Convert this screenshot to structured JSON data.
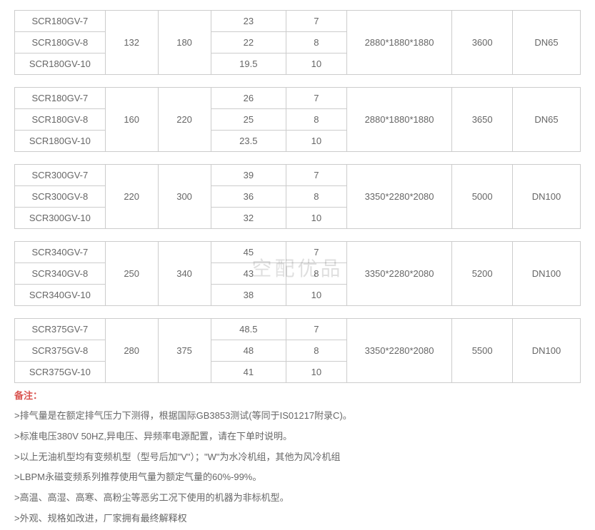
{
  "watermark": "空配优品",
  "groups": [
    {
      "power": "132",
      "hp": "180",
      "dim": "2880*1880*1880",
      "weight": "3600",
      "conn": "DN65",
      "rows": [
        {
          "model": "SCR180GV-7",
          "flow": "23",
          "press": "7"
        },
        {
          "model": "SCR180GV-8",
          "flow": "22",
          "press": "8"
        },
        {
          "model": "SCR180GV-10",
          "flow": "19.5",
          "press": "10"
        }
      ]
    },
    {
      "power": "160",
      "hp": "220",
      "dim": "2880*1880*1880",
      "weight": "3650",
      "conn": "DN65",
      "rows": [
        {
          "model": "SCR180GV-7",
          "flow": "26",
          "press": "7"
        },
        {
          "model": "SCR180GV-8",
          "flow": "25",
          "press": "8"
        },
        {
          "model": "SCR180GV-10",
          "flow": "23.5",
          "press": "10"
        }
      ]
    },
    {
      "power": "220",
      "hp": "300",
      "dim": "3350*2280*2080",
      "weight": "5000",
      "conn": "DN100",
      "rows": [
        {
          "model": "SCR300GV-7",
          "flow": "39",
          "press": "7"
        },
        {
          "model": "SCR300GV-8",
          "flow": "36",
          "press": "8"
        },
        {
          "model": "SCR300GV-10",
          "flow": "32",
          "press": "10"
        }
      ]
    },
    {
      "power": "250",
      "hp": "340",
      "dim": "3350*2280*2080",
      "weight": "5200",
      "conn": "DN100",
      "rows": [
        {
          "model": "SCR340GV-7",
          "flow": "45",
          "press": "7"
        },
        {
          "model": "SCR340GV-8",
          "flow": "43",
          "press": "8"
        },
        {
          "model": "SCR340GV-10",
          "flow": "38",
          "press": "10"
        }
      ]
    },
    {
      "power": "280",
      "hp": "375",
      "dim": "3350*2280*2080",
      "weight": "5500",
      "conn": "DN100",
      "rows": [
        {
          "model": "SCR375GV-7",
          "flow": "48.5",
          "press": "7"
        },
        {
          "model": "SCR375GV-8",
          "flow": "48",
          "press": "8"
        },
        {
          "model": "SCR375GV-10",
          "flow": "41",
          "press": "10"
        }
      ]
    }
  ],
  "notes": {
    "title": "备注：",
    "lines": [
      ">排气量是在额定排气压力下测得，根据国际GB3853测试(等同于IS01217附录C)。",
      ">标准电压380V 50HZ,异电压、异频率电源配置，请在下单时说明。",
      ">以上无油机型均有变频机型（型号后加\"V\"）；\"W\"为水冷机组，其他为风冷机组",
      ">LBPM永磁变频系列推荐使用气量为额定气量的60%-99%。",
      ">高温、高湿、高寒、高粉尘等恶劣工况下使用的机器为非标机型。",
      ">外观、规格如改进，厂家拥有最终解释权"
    ]
  },
  "colors": {
    "border": "#cccccc",
    "text": "#666666",
    "notes_title": "#d9534f",
    "background": "#ffffff"
  }
}
